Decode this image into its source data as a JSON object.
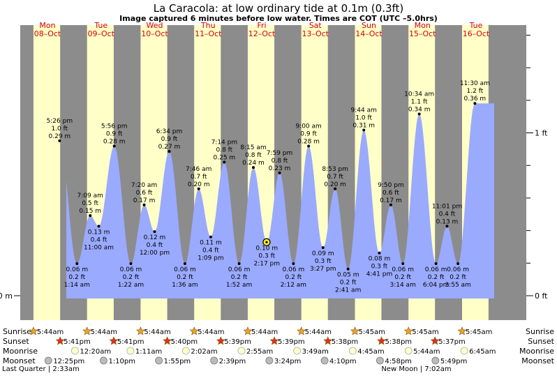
{
  "chart_data": {
    "type": "area",
    "title": "La Caracola: at low  ordinary tide at 0.1m (0.3ft)",
    "subtitle": "Image captured 6 minutes before low water. Times are COT (UTC –5.0hrs)",
    "xlabel": "",
    "ylabel": "",
    "ylim_m": [
      -0.045,
      0.4
    ],
    "grid": false,
    "colors": {
      "night": "#8c8c8c",
      "day": "#ffffc8",
      "water": "#9aaaff",
      "day_label": "#d40000",
      "current": "#ffee22"
    },
    "days": [
      {
        "dow": "Mon",
        "date": "08–Oct"
      },
      {
        "dow": "Tue",
        "date": "09–Oct"
      },
      {
        "dow": "Wed",
        "date": "10–Oct"
      },
      {
        "dow": "Thu",
        "date": "11–Oct"
      },
      {
        "dow": "Fri",
        "date": "12–Oct"
      },
      {
        "dow": "Sat",
        "date": "13–Oct"
      },
      {
        "dow": "Sun",
        "date": "14–Oct"
      },
      {
        "dow": "Mon",
        "date": "15–Oct"
      },
      {
        "dow": "Tue",
        "date": "16–Oct"
      }
    ],
    "y_ticks_left": [
      {
        "value": 0.0,
        "label": "0.0 m"
      }
    ],
    "y_ticks_right": [
      {
        "value": 0.0,
        "label": "0 ft"
      },
      {
        "value": 0.3048,
        "label": "1 ft"
      }
    ],
    "sun": [
      {
        "day": 0,
        "rise": "5:44am",
        "set": "5:41pm"
      },
      {
        "day": 1,
        "rise": "5:44am",
        "set": "5:41pm"
      },
      {
        "day": 2,
        "rise": "5:44am",
        "set": "5:40pm"
      },
      {
        "day": 3,
        "rise": "5:44am",
        "set": "5:39pm"
      },
      {
        "day": 4,
        "rise": "5:44am",
        "set": "5:39pm"
      },
      {
        "day": 5,
        "rise": "5:44am",
        "set": "5:38pm"
      },
      {
        "day": 6,
        "rise": "5:45am",
        "set": "5:38pm"
      },
      {
        "day": 7,
        "rise": "5:45am",
        "set": "5:37pm"
      },
      {
        "day": 8,
        "rise": "5:45am",
        "set": null
      }
    ],
    "moonrise": [
      {
        "day": 1,
        "h": 0.33,
        "time": "12:20am"
      },
      {
        "day": 2,
        "h": 1.18,
        "time": "1:11am"
      },
      {
        "day": 3,
        "h": 2.03,
        "time": "2:02am"
      },
      {
        "day": 4,
        "h": 2.92,
        "time": "2:55am"
      },
      {
        "day": 5,
        "h": 3.82,
        "time": "3:49am"
      },
      {
        "day": 6,
        "h": 4.75,
        "time": "4:45am"
      },
      {
        "day": 7,
        "h": 5.73,
        "time": "5:44am"
      },
      {
        "day": 8,
        "h": 6.75,
        "time": "6:45am"
      }
    ],
    "moonset": [
      {
        "day": 0,
        "h": 12.42,
        "time": "12:25pm"
      },
      {
        "day": 1,
        "h": 13.17,
        "time": "1:10pm"
      },
      {
        "day": 2,
        "h": 13.92,
        "time": "1:55pm"
      },
      {
        "day": 3,
        "h": 14.65,
        "time": "2:39pm"
      },
      {
        "day": 4,
        "h": 15.4,
        "time": "3:24pm"
      },
      {
        "day": 5,
        "h": 16.17,
        "time": "4:10pm"
      },
      {
        "day": 6,
        "h": 16.97,
        "time": "4:58pm"
      },
      {
        "day": 7,
        "h": 17.82,
        "time": "5:49pm"
      }
    ],
    "phases": [
      {
        "text": "Last Quarter | 2:33am",
        "day": 0,
        "h": 2.55
      },
      {
        "text": "New Moon | 7:02am",
        "day": 7,
        "h": 7.03
      }
    ],
    "row_labels": {
      "sunrise": "Sunrise",
      "sunset": "Sunset",
      "moonrise": "Moonrise",
      "moonset": "Moonset"
    },
    "series": [
      {
        "name": "",
        "points": [
          {
            "type": "H",
            "day": 0,
            "h": 17.43,
            "time": "5:26 pm",
            "ft": "1.0 ft",
            "m": "0.29 m"
          },
          {
            "type": "L",
            "day": 1,
            "h": 1.23,
            "time": "1:14 am",
            "ft": "0.2 ft",
            "m": "0.06 m"
          },
          {
            "type": "H",
            "day": 1,
            "h": 7.15,
            "time": "7:09 am",
            "ft": "0.5 ft",
            "m": "0.15 m"
          },
          {
            "type": "L",
            "day": 1,
            "h": 11.0,
            "time": "11:00 am",
            "ft": "0.4 ft",
            "m": "0.13 m"
          },
          {
            "type": "H",
            "day": 1,
            "h": 17.93,
            "time": "5:56 pm",
            "ft": "0.9 ft",
            "m": "0.28 m"
          },
          {
            "type": "L",
            "day": 2,
            "h": 1.37,
            "time": "1:22 am",
            "ft": "0.2 ft",
            "m": "0.06 m"
          },
          {
            "type": "H",
            "day": 2,
            "h": 7.33,
            "time": "7:20 am",
            "ft": "0.6 ft",
            "m": "0.17 m"
          },
          {
            "type": "L",
            "day": 2,
            "h": 12.0,
            "time": "12:00 pm",
            "ft": "0.4 ft",
            "m": "0.12 m"
          },
          {
            "type": "H",
            "day": 2,
            "h": 18.57,
            "time": "6:34 pm",
            "ft": "0.9 ft",
            "m": "0.27 m"
          },
          {
            "type": "L",
            "day": 3,
            "h": 1.6,
            "time": "1:36 am",
            "ft": "0.2 ft",
            "m": "0.06 m"
          },
          {
            "type": "H",
            "day": 3,
            "h": 7.77,
            "time": "7:46 am",
            "ft": "0.7 ft",
            "m": "0.20 m"
          },
          {
            "type": "L",
            "day": 3,
            "h": 13.15,
            "time": "1:09 pm",
            "ft": "0.4 ft",
            "m": "0.11 m"
          },
          {
            "type": "H",
            "day": 3,
            "h": 19.23,
            "time": "7:14 pm",
            "ft": "0.8 ft",
            "m": "0.25 m"
          },
          {
            "type": "L",
            "day": 4,
            "h": 1.87,
            "time": "1:52 am",
            "ft": "0.2 ft",
            "m": "0.06 m"
          },
          {
            "type": "H",
            "day": 4,
            "h": 8.25,
            "time": "8:15 am",
            "ft": "0.8 ft",
            "m": "0.24 m"
          },
          {
            "type": "L",
            "day": 4,
            "h": 14.28,
            "time": "2:17 pm",
            "ft": "0.3 ft",
            "m": "0.10 m"
          },
          {
            "type": "H",
            "day": 4,
            "h": 19.98,
            "time": "7:59 pm",
            "ft": "0.8 ft",
            "m": "0.23 m"
          },
          {
            "type": "L",
            "day": 5,
            "h": 2.2,
            "time": "2:12 am",
            "ft": "0.2 ft",
            "m": "0.06 m"
          },
          {
            "type": "H",
            "day": 5,
            "h": 9.0,
            "time": "9:00 am",
            "ft": "0.9 ft",
            "m": "0.28 m"
          },
          {
            "type": "L",
            "day": 5,
            "h": 15.45,
            "time": "3:27 pm",
            "ft": "0.3 ft",
            "m": "0.09 m"
          },
          {
            "type": "H",
            "day": 5,
            "h": 20.88,
            "time": "8:53 pm",
            "ft": "0.7 ft",
            "m": "0.20 m"
          },
          {
            "type": "L",
            "day": 6,
            "h": 2.68,
            "time": "2:41 am",
            "ft": "0.2 ft",
            "m": "0.05 m"
          },
          {
            "type": "H",
            "day": 6,
            "h": 9.73,
            "time": "9:44 am",
            "ft": "1.0 ft",
            "m": "0.31 m"
          },
          {
            "type": "L",
            "day": 6,
            "h": 16.68,
            "time": "4:41 pm",
            "ft": "0.3 ft",
            "m": "0.08 m"
          },
          {
            "type": "H",
            "day": 6,
            "h": 21.83,
            "time": "9:50 pm",
            "ft": "0.6 ft",
            "m": "0.17 m"
          },
          {
            "type": "L",
            "day": 7,
            "h": 3.23,
            "time": "3:14 am",
            "ft": "0.2 ft",
            "m": "0.06 m"
          },
          {
            "type": "H",
            "day": 7,
            "h": 10.57,
            "time": "10:34 am",
            "ft": "1.1 ft",
            "m": "0.34 m"
          },
          {
            "type": "L",
            "day": 7,
            "h": 18.07,
            "time": "6:04 pm",
            "ft": "0.2 ft",
            "m": "0.06 m"
          },
          {
            "type": "H",
            "day": 7,
            "h": 23.02,
            "time": "11:01 pm",
            "ft": "0.4 ft",
            "m": "0.13 m"
          },
          {
            "type": "L",
            "day": 8,
            "h": 3.92,
            "time": "3:55 am",
            "ft": "0.2 ft",
            "m": "0.06 m"
          },
          {
            "type": "H",
            "day": 8,
            "h": 11.5,
            "time": "11:30 am",
            "ft": "1.2 ft",
            "m": "0.36 m"
          }
        ]
      }
    ],
    "current": {
      "day": 4,
      "h": 14.18
    }
  }
}
